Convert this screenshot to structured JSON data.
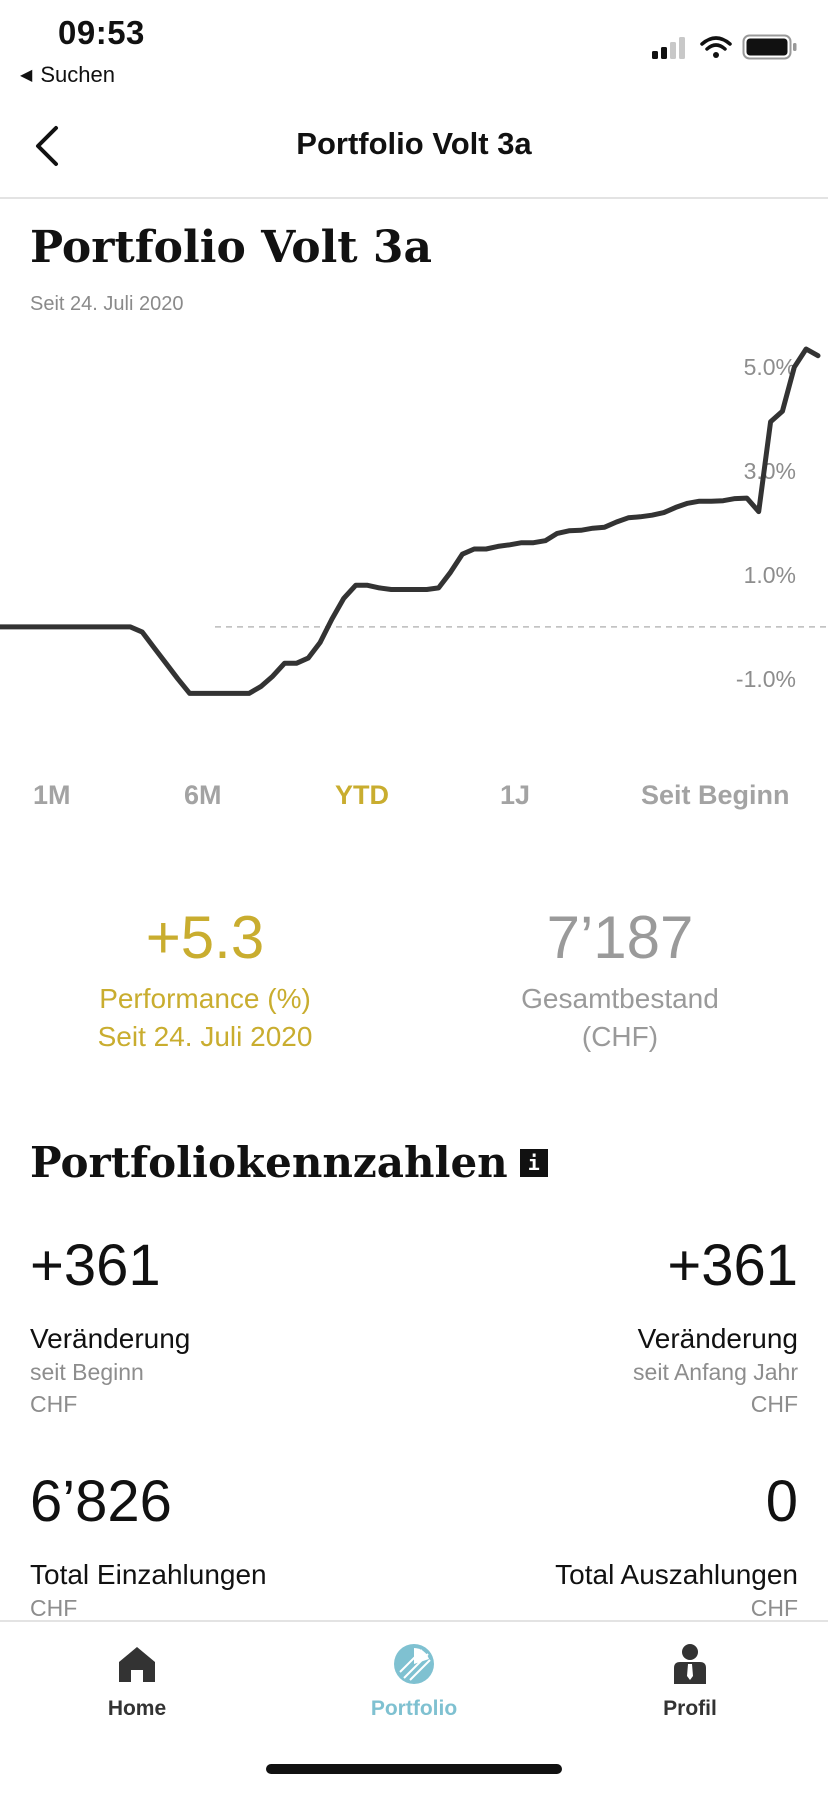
{
  "status_bar": {
    "time": "09:53",
    "back_app_label": "Suchen",
    "signal_icon": "cellular-signal-icon",
    "wifi_icon": "wifi-icon",
    "battery_icon": "battery-icon"
  },
  "nav": {
    "title": "Portfolio Volt 3a",
    "back_icon": "chevron-left-icon"
  },
  "header": {
    "title": "Portfolio Volt 3a",
    "subtitle": "Seit 24. Juli 2020"
  },
  "chart_data": {
    "type": "line",
    "y_tick_labels": [
      "5.0%",
      "3.0%",
      "1.0%",
      "-1.0%"
    ],
    "y_ticks": [
      5.0,
      3.0,
      1.0,
      -1.0
    ],
    "baseline": 0,
    "ylim": [
      -1.6,
      5.6
    ],
    "x_labels": [],
    "series": [
      {
        "values": [
          0.0,
          0.0,
          0.0,
          0.0,
          0.0,
          0.0,
          0.0,
          0.0,
          0.0,
          0.0,
          0.0,
          0.0,
          -0.1,
          -0.4,
          -0.7,
          -1.0,
          -1.28,
          -1.28,
          -1.28,
          -1.28,
          -1.28,
          -1.28,
          -1.15,
          -0.95,
          -0.7,
          -0.7,
          -0.6,
          -0.3,
          0.15,
          0.55,
          0.8,
          0.8,
          0.75,
          0.72,
          0.72,
          0.72,
          0.72,
          0.75,
          1.05,
          1.4,
          1.5,
          1.5,
          1.55,
          1.58,
          1.62,
          1.62,
          1.66,
          1.8,
          1.85,
          1.86,
          1.9,
          1.92,
          2.02,
          2.1,
          2.12,
          2.15,
          2.2,
          2.3,
          2.38,
          2.42,
          2.42,
          2.43,
          2.47,
          2.48,
          2.22,
          3.95,
          4.15,
          5.0,
          5.35,
          5.22
        ]
      }
    ],
    "colors": {
      "line": "#333333",
      "baseline": "#bbbbbb"
    }
  },
  "period_tabs": [
    {
      "label": "1M",
      "active": false
    },
    {
      "label": "6M",
      "active": false
    },
    {
      "label": "YTD",
      "active": true
    },
    {
      "label": "1J",
      "active": false
    },
    {
      "label": "Seit Beginn",
      "active": false
    }
  ],
  "summary": {
    "performance": {
      "value": "+5.3",
      "label_line1": "Performance (%)",
      "label_line2": "Seit 24. Juli 2020"
    },
    "total": {
      "value": "7’187",
      "label_line1": "Gesamtbestand",
      "label_line2": "(CHF)"
    }
  },
  "kpis": {
    "title": "Portfoliokennzahlen",
    "info_icon": "info-icon",
    "change_since_start": {
      "value": "+361",
      "label": "Veränderung",
      "sub1": "seit Beginn",
      "sub2": "CHF"
    },
    "change_since_year": {
      "value": "+361",
      "label": "Veränderung",
      "sub1": "seit Anfang Jahr",
      "sub2": "CHF"
    },
    "total_deposits": {
      "value": "6’826",
      "label": "Total Einzahlungen",
      "sub1": "CHF"
    },
    "total_withdrawals": {
      "value": "0",
      "label": "Total Auszahlungen",
      "sub1": "CHF"
    }
  },
  "tabbar": {
    "items": [
      {
        "label": "Home",
        "icon": "home-icon",
        "active": false
      },
      {
        "label": "Portfolio",
        "icon": "portfolio-pie-icon",
        "active": true
      },
      {
        "label": "Profil",
        "icon": "profile-person-icon",
        "active": false
      }
    ],
    "colors": {
      "active": "#7fc1d1",
      "inactive": "#333333"
    }
  },
  "colors": {
    "accent_gold": "#c9ad2f",
    "muted": "#9a9a9a"
  }
}
